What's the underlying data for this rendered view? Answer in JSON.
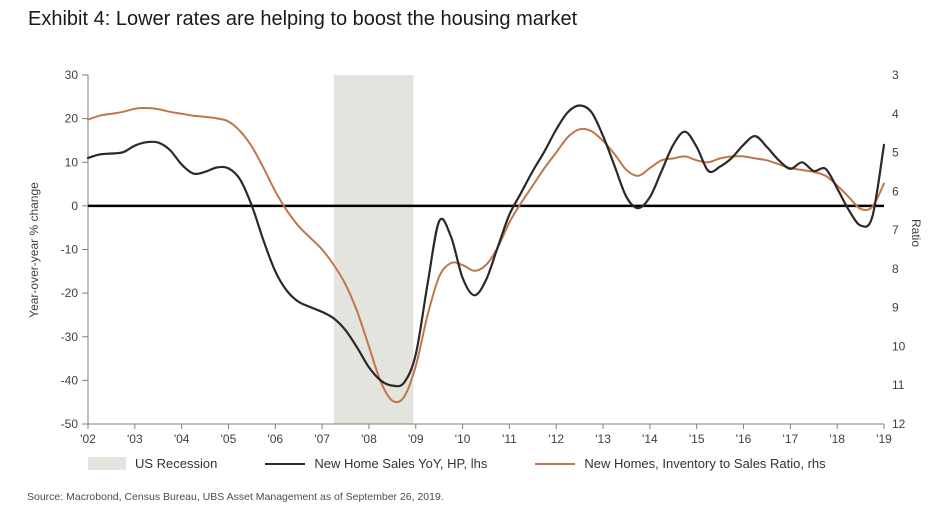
{
  "header": {
    "title": "Exhibit 4: Lower rates are helping to boost the housing market"
  },
  "source_note": "Source: Macrobond, Census Bureau, UBS Asset Management as of September 26, 2019.",
  "chart_data": {
    "type": "line",
    "title": "Exhibit 4: Lower rates are helping to boost the housing market",
    "grid": "off",
    "legend_position": "bottom",
    "x_axis": {
      "range": [
        2002,
        2019
      ],
      "tick_years": [
        2002,
        2003,
        2004,
        2005,
        2006,
        2007,
        2008,
        2009,
        2010,
        2011,
        2012,
        2013,
        2014,
        2015,
        2016,
        2017,
        2018,
        2019
      ],
      "tick_labels": [
        "'02",
        "'03",
        "'04",
        "'05",
        "'06",
        "'07",
        "'08",
        "'09",
        "'10",
        "'11",
        "'12",
        "'13",
        "'14",
        "'15",
        "'16",
        "'17",
        "'18",
        "'19"
      ]
    },
    "left_axis": {
      "label": "Year-over-year % change",
      "range": [
        -50,
        30
      ],
      "ticks": [
        30,
        20,
        10,
        0,
        -10,
        -20,
        -30,
        -40,
        -50
      ]
    },
    "right_axis": {
      "label": "Ratio",
      "range": [
        3,
        12
      ],
      "inverted": true,
      "ticks": [
        3,
        4,
        5,
        6,
        7,
        8,
        9,
        10,
        11,
        12
      ]
    },
    "zero_line": {
      "value": 0,
      "color": "#000000"
    },
    "recession_band": {
      "label": "US Recession",
      "x_start": 2007.25,
      "x_end": 2008.95,
      "color": "#e4e4de"
    },
    "series": [
      {
        "name": "New Home Sales YoY, HP, lhs",
        "axis": "left",
        "color": "#2b2826",
        "x_start": 2002,
        "x_step": 0.25,
        "values": [
          11,
          11.8,
          12,
          12.3,
          13.8,
          14.6,
          14.5,
          12.8,
          9.5,
          7.4,
          7.8,
          8.8,
          8.6,
          6,
          0,
          -8,
          -15,
          -19.5,
          -22,
          -23.2,
          -24.3,
          -25.8,
          -28.5,
          -32.5,
          -37,
          -40,
          -41.2,
          -40.5,
          -34,
          -18,
          -3.5,
          -7,
          -16.5,
          -20.5,
          -17,
          -9.5,
          -2,
          3,
          8,
          12.5,
          17.5,
          21.5,
          23,
          21.5,
          16,
          9,
          2,
          -0.5,
          2,
          8,
          14,
          17,
          13.5,
          8,
          9,
          11,
          14,
          16,
          13.5,
          10.5,
          8.5,
          10,
          8,
          8.5,
          4,
          -1,
          -4.5,
          -2.5,
          14
        ]
      },
      {
        "name": "New Homes, Inventory to Sales Ratio, rhs",
        "axis": "right",
        "color": "#c0764c",
        "x_start": 2002,
        "x_step": 0.25,
        "values": [
          4.15,
          4.05,
          4,
          3.95,
          3.87,
          3.85,
          3.88,
          3.95,
          4,
          4.05,
          4.08,
          4.12,
          4.2,
          4.45,
          4.85,
          5.4,
          6,
          6.5,
          6.9,
          7.2,
          7.5,
          7.9,
          8.4,
          9.1,
          10,
          10.9,
          11.4,
          11.3,
          10.5,
          9.2,
          8.2,
          7.85,
          7.9,
          8.05,
          7.9,
          7.45,
          6.8,
          6.3,
          5.85,
          5.4,
          5,
          4.6,
          4.4,
          4.45,
          4.7,
          5.05,
          5.45,
          5.6,
          5.4,
          5.2,
          5.15,
          5.1,
          5.2,
          5.25,
          5.15,
          5.1,
          5.1,
          5.15,
          5.2,
          5.3,
          5.4,
          5.45,
          5.5,
          5.6,
          5.85,
          6.15,
          6.45,
          6.4,
          5.8
        ]
      }
    ]
  }
}
